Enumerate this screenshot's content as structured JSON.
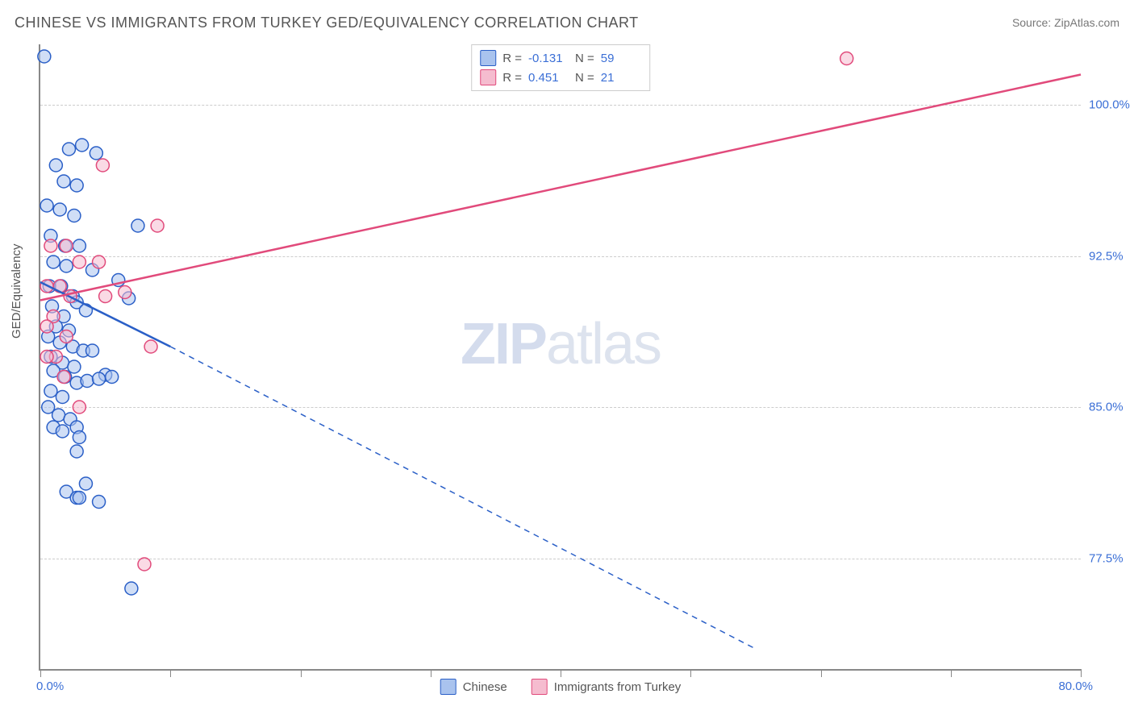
{
  "title": "CHINESE VS IMMIGRANTS FROM TURKEY GED/EQUIVALENCY CORRELATION CHART",
  "source": "Source: ZipAtlas.com",
  "ylabel": "GED/Equivalency",
  "watermark_bold": "ZIP",
  "watermark_light": "atlas",
  "chart": {
    "type": "scatter-with-regression",
    "xlim": [
      0,
      80
    ],
    "ylim": [
      72,
      103
    ],
    "x_min_label": "0.0%",
    "x_max_label": "80.0%",
    "y_ticks": [
      {
        "value": 100,
        "label": "100.0%"
      },
      {
        "value": 92.5,
        "label": "92.5%"
      },
      {
        "value": 85,
        "label": "85.0%"
      },
      {
        "value": 77.5,
        "label": "77.5%"
      }
    ],
    "x_tick_positions": [
      0,
      10,
      20,
      30,
      40,
      50,
      60,
      70,
      80
    ],
    "grid_color": "#cccccc",
    "axis_color": "#888888",
    "background_color": "#ffffff",
    "series": [
      {
        "id": "chinese",
        "label": "Chinese",
        "stroke": "#2a5fc7",
        "fill": "#a9c3ee",
        "fill_opacity": 0.55,
        "marker_radius": 8,
        "marker_stroke_width": 1.5,
        "stats": {
          "R": "-0.131",
          "N": "59"
        },
        "regression": {
          "solid": {
            "x1": 0,
            "y1": 91.2,
            "x2": 10,
            "y2": 88.0
          },
          "dashed": {
            "x1": 10,
            "y1": 88.0,
            "x2": 55,
            "y2": 73.0
          }
        },
        "points": [
          [
            0.3,
            102.4
          ],
          [
            2.2,
            97.8
          ],
          [
            3.2,
            98.0
          ],
          [
            4.3,
            97.6
          ],
          [
            1.2,
            97.0
          ],
          [
            1.8,
            96.2
          ],
          [
            2.8,
            96.0
          ],
          [
            0.5,
            95.0
          ],
          [
            1.5,
            94.8
          ],
          [
            2.6,
            94.5
          ],
          [
            7.5,
            94.0
          ],
          [
            0.8,
            93.5
          ],
          [
            1.9,
            93.0
          ],
          [
            3.0,
            93.0
          ],
          [
            1.0,
            92.2
          ],
          [
            2.0,
            92.0
          ],
          [
            4.0,
            91.8
          ],
          [
            0.7,
            91.0
          ],
          [
            1.6,
            91.0
          ],
          [
            2.5,
            90.5
          ],
          [
            6.0,
            91.3
          ],
          [
            6.8,
            90.4
          ],
          [
            0.9,
            90.0
          ],
          [
            1.8,
            89.5
          ],
          [
            2.8,
            90.2
          ],
          [
            3.5,
            89.8
          ],
          [
            1.2,
            89.0
          ],
          [
            2.2,
            88.8
          ],
          [
            0.6,
            88.5
          ],
          [
            1.5,
            88.2
          ],
          [
            2.5,
            88.0
          ],
          [
            3.3,
            87.8
          ],
          [
            4.0,
            87.8
          ],
          [
            0.8,
            87.5
          ],
          [
            1.7,
            87.2
          ],
          [
            2.6,
            87.0
          ],
          [
            1.0,
            86.8
          ],
          [
            1.9,
            86.5
          ],
          [
            2.8,
            86.2
          ],
          [
            5.0,
            86.6
          ],
          [
            5.5,
            86.5
          ],
          [
            3.6,
            86.3
          ],
          [
            4.5,
            86.4
          ],
          [
            0.8,
            85.8
          ],
          [
            1.7,
            85.5
          ],
          [
            0.6,
            85.0
          ],
          [
            1.4,
            84.6
          ],
          [
            2.3,
            84.4
          ],
          [
            2.8,
            84.0
          ],
          [
            1.0,
            84.0
          ],
          [
            1.7,
            83.8
          ],
          [
            3.0,
            83.5
          ],
          [
            2.8,
            82.8
          ],
          [
            3.5,
            81.2
          ],
          [
            2.0,
            80.8
          ],
          [
            2.8,
            80.5
          ],
          [
            3.0,
            80.5
          ],
          [
            4.5,
            80.3
          ],
          [
            7.0,
            76.0
          ]
        ]
      },
      {
        "id": "turkey",
        "label": "Immigrants from Turkey",
        "stroke": "#e14a7b",
        "fill": "#f5bccf",
        "fill_opacity": 0.55,
        "marker_radius": 8,
        "marker_stroke_width": 1.5,
        "stats": {
          "R": "0.451",
          "N": "21"
        },
        "regression": {
          "solid": {
            "x1": 0,
            "y1": 90.3,
            "x2": 80,
            "y2": 101.5
          },
          "dashed": null
        },
        "points": [
          [
            62.0,
            102.3
          ],
          [
            4.8,
            97.0
          ],
          [
            9.0,
            94.0
          ],
          [
            0.8,
            93.0
          ],
          [
            2.0,
            93.0
          ],
          [
            3.0,
            92.2
          ],
          [
            4.5,
            92.2
          ],
          [
            0.5,
            91.0
          ],
          [
            1.5,
            91.0
          ],
          [
            2.3,
            90.5
          ],
          [
            5.0,
            90.5
          ],
          [
            6.5,
            90.7
          ],
          [
            1.0,
            89.5
          ],
          [
            0.5,
            89.0
          ],
          [
            2.0,
            88.5
          ],
          [
            8.5,
            88.0
          ],
          [
            1.2,
            87.5
          ],
          [
            0.5,
            87.5
          ],
          [
            1.8,
            86.5
          ],
          [
            3.0,
            85.0
          ],
          [
            8.0,
            77.2
          ]
        ]
      }
    ],
    "title_fontsize": 18,
    "label_fontsize": 15,
    "tick_fontsize": 15,
    "tick_color": "#3b6fd6"
  },
  "legend_bottom": [
    {
      "label_key": "chart.series.0.label",
      "fill": "#a9c3ee",
      "stroke": "#2a5fc7"
    },
    {
      "label_key": "chart.series.1.label",
      "fill": "#f5bccf",
      "stroke": "#e14a7b"
    }
  ]
}
